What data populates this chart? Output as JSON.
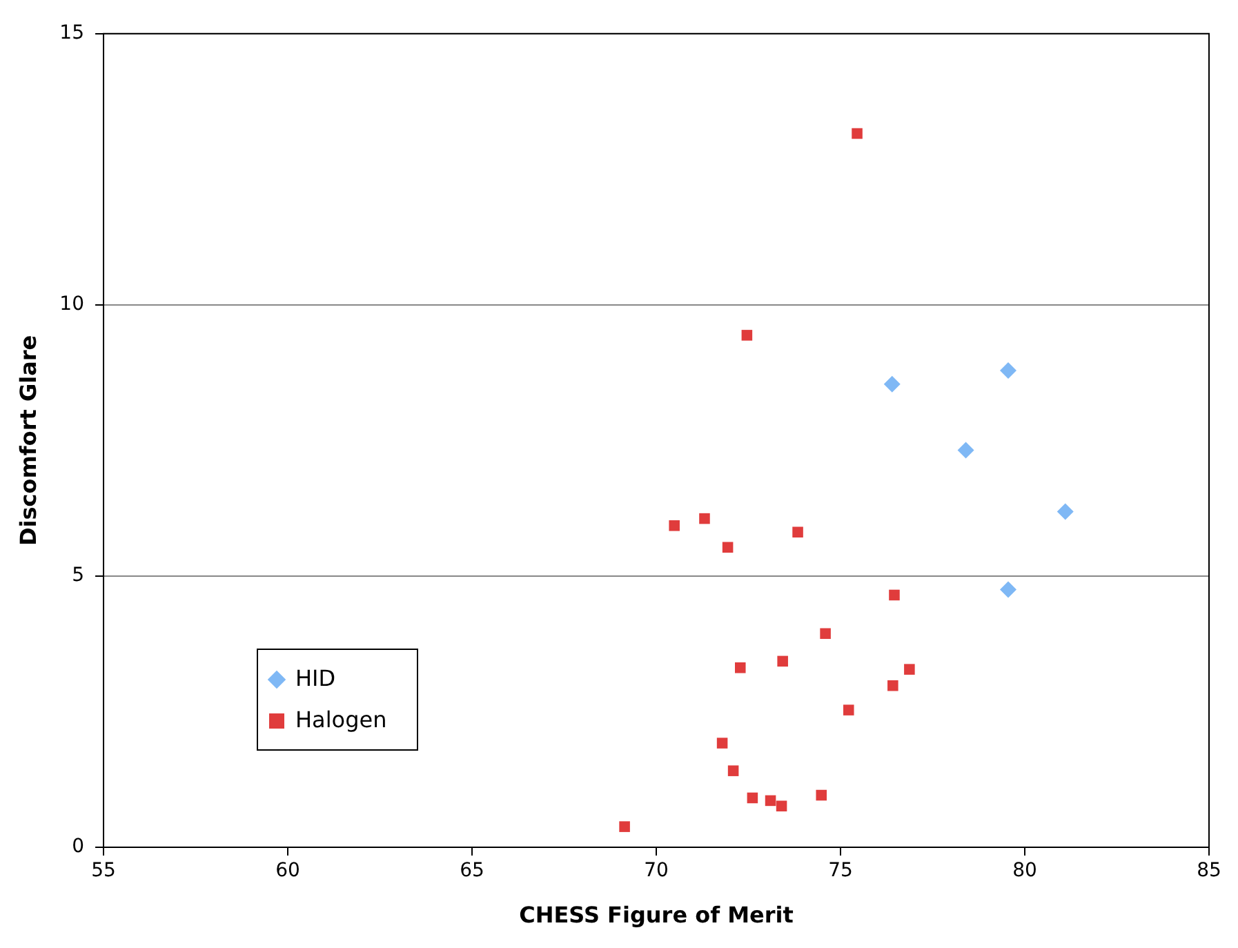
{
  "chart_data": {
    "type": "scatter",
    "xlabel": "CHESS Figure of Merit",
    "ylabel": "Discomfort Glare",
    "xlim": [
      55,
      85
    ],
    "xticks": [
      55,
      60,
      65,
      70,
      75,
      80,
      85
    ],
    "ylim": [
      0,
      15
    ],
    "yticks": [
      0,
      5,
      10,
      15
    ],
    "grid": "y",
    "legend": "bottom left",
    "series": [
      {
        "name": "HID",
        "color": "#7fb8f5",
        "marker": "diamond",
        "x": [
          76.4,
          79.55,
          78.4,
          81.1,
          79.55
        ],
        "values": [
          8.54,
          8.79,
          7.32,
          6.19,
          4.75
        ]
      },
      {
        "name": "Halogen",
        "color": "#e03c3c",
        "marker": "square",
        "x": [
          75.45,
          72.46,
          70.49,
          71.31,
          71.94,
          73.84,
          76.46,
          74.59,
          73.43,
          72.28,
          76.87,
          76.42,
          75.22,
          71.79,
          72.09,
          72.61,
          73.1,
          73.4,
          74.48,
          69.14
        ],
        "values": [
          13.16,
          9.44,
          5.93,
          6.06,
          5.53,
          5.81,
          4.65,
          3.94,
          3.43,
          3.31,
          3.28,
          2.98,
          2.53,
          1.92,
          1.41,
          0.91,
          0.86,
          0.76,
          0.96,
          0.38
        ]
      }
    ]
  }
}
